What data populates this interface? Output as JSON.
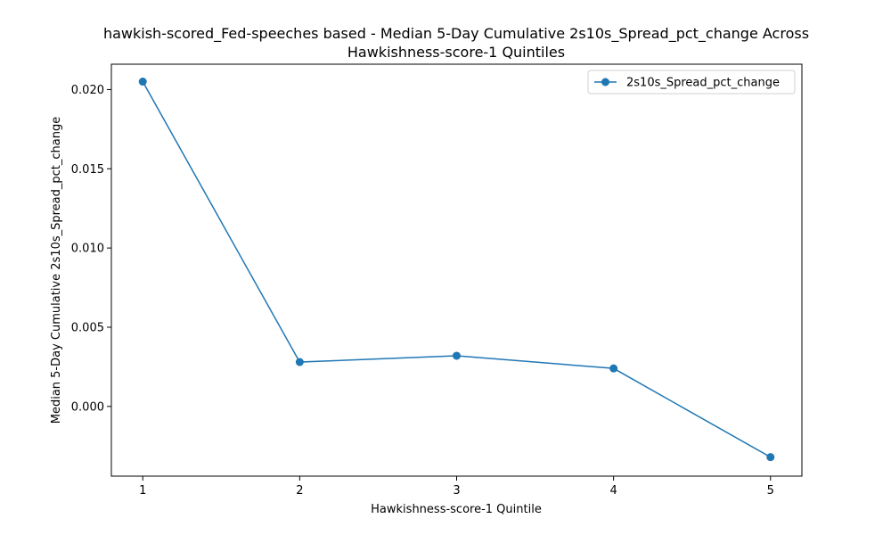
{
  "chart_data": {
    "type": "line",
    "title_line1": "hawkish-scored_Fed-speeches based - Median 5-Day Cumulative 2s10s_Spread_pct_change Across",
    "title_line2": "Hawkishness-score-1 Quintiles",
    "xlabel": "Hawkishness-score-1 Quintile",
    "ylabel": "Median 5-Day Cumulative 2s10s_Spread_pct_change",
    "x": [
      1,
      2,
      3,
      4,
      5
    ],
    "xticks": [
      "1",
      "2",
      "3",
      "4",
      "5"
    ],
    "yticks": [
      0.0,
      0.005,
      0.01,
      0.015,
      0.02
    ],
    "ytick_labels": [
      "0.000",
      "0.005",
      "0.010",
      "0.015",
      "0.020"
    ],
    "xlim": [
      0.8,
      5.2
    ],
    "ylim": [
      -0.0044,
      0.0216
    ],
    "grid": false,
    "legend_position": "upper-right",
    "series": [
      {
        "name": "2s10s_Spread_pct_change",
        "color": "#1f77b4",
        "marker": "circle",
        "values": [
          0.0205,
          0.0028,
          0.0032,
          0.0024,
          -0.0032
        ]
      }
    ]
  }
}
